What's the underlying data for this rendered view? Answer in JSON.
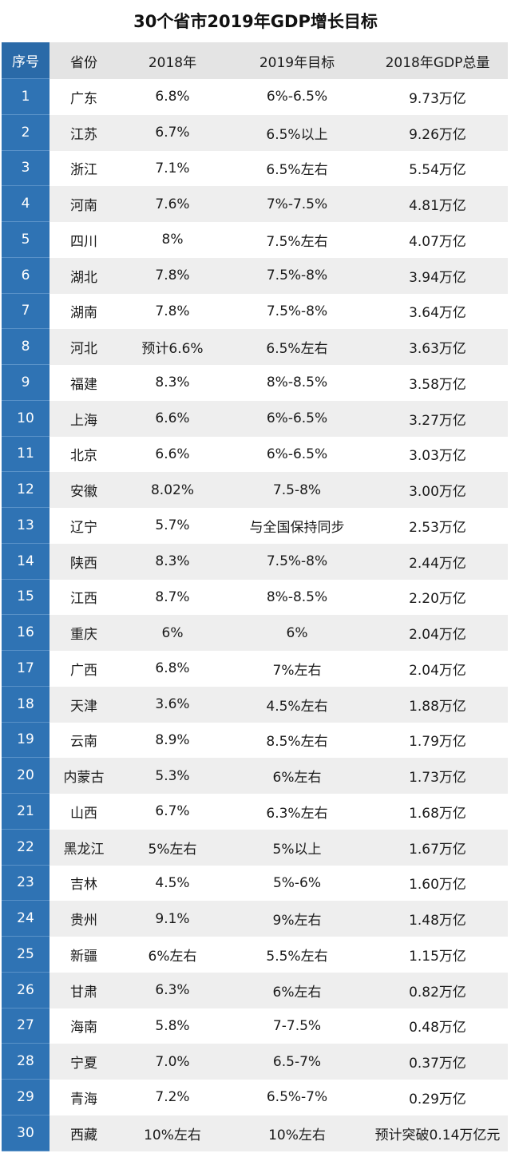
{
  "title": "30个省市2019年GDP增长目标",
  "columns": [
    "序号",
    "省份",
    "2018年",
    "2019年目标",
    "2018年GDP总量"
  ],
  "rows": [
    {
      "idx": "1",
      "province": "广东",
      "growth_2018": "6.8%",
      "target_2019": "6%-6.5%",
      "gdp_2018": "9.73万亿"
    },
    {
      "idx": "2",
      "province": "江苏",
      "growth_2018": "6.7%",
      "target_2019": "6.5%以上",
      "gdp_2018": "9.26万亿"
    },
    {
      "idx": "3",
      "province": "浙江",
      "growth_2018": "7.1%",
      "target_2019": "6.5%左右",
      "gdp_2018": "5.54万亿"
    },
    {
      "idx": "4",
      "province": "河南",
      "growth_2018": "7.6%",
      "target_2019": "7%-7.5%",
      "gdp_2018": "4.81万亿"
    },
    {
      "idx": "5",
      "province": "四川",
      "growth_2018": "8%",
      "target_2019": "7.5%左右",
      "gdp_2018": "4.07万亿"
    },
    {
      "idx": "6",
      "province": "湖北",
      "growth_2018": "7.8%",
      "target_2019": "7.5%-8%",
      "gdp_2018": "3.94万亿"
    },
    {
      "idx": "7",
      "province": "湖南",
      "growth_2018": "7.8%",
      "target_2019": "7.5%-8%",
      "gdp_2018": "3.64万亿"
    },
    {
      "idx": "8",
      "province": "河北",
      "growth_2018": "预计6.6%",
      "target_2019": "6.5%左右",
      "gdp_2018": "3.63万亿"
    },
    {
      "idx": "9",
      "province": "福建",
      "growth_2018": "8.3%",
      "target_2019": "8%-8.5%",
      "gdp_2018": "3.58万亿"
    },
    {
      "idx": "10",
      "province": "上海",
      "growth_2018": "6.6%",
      "target_2019": "6%-6.5%",
      "gdp_2018": "3.27万亿"
    },
    {
      "idx": "11",
      "province": "北京",
      "growth_2018": "6.6%",
      "target_2019": "6%-6.5%",
      "gdp_2018": "3.03万亿"
    },
    {
      "idx": "12",
      "province": "安徽",
      "growth_2018": "8.02%",
      "target_2019": "7.5-8%",
      "gdp_2018": "3.00万亿"
    },
    {
      "idx": "13",
      "province": "辽宁",
      "growth_2018": "5.7%",
      "target_2019": "与全国保持同步",
      "gdp_2018": "2.53万亿"
    },
    {
      "idx": "14",
      "province": "陕西",
      "growth_2018": "8.3%",
      "target_2019": "7.5%-8%",
      "gdp_2018": "2.44万亿"
    },
    {
      "idx": "15",
      "province": "江西",
      "growth_2018": "8.7%",
      "target_2019": "8%-8.5%",
      "gdp_2018": "2.20万亿"
    },
    {
      "idx": "16",
      "province": "重庆",
      "growth_2018": "6%",
      "target_2019": "6%",
      "gdp_2018": "2.04万亿"
    },
    {
      "idx": "17",
      "province": "广西",
      "growth_2018": "6.8%",
      "target_2019": "7%左右",
      "gdp_2018": "2.04万亿"
    },
    {
      "idx": "18",
      "province": "天津",
      "growth_2018": "3.6%",
      "target_2019": "4.5%左右",
      "gdp_2018": "1.88万亿"
    },
    {
      "idx": "19",
      "province": "云南",
      "growth_2018": "8.9%",
      "target_2019": "8.5%左右",
      "gdp_2018": "1.79万亿"
    },
    {
      "idx": "20",
      "province": "内蒙古",
      "growth_2018": "5.3%",
      "target_2019": "6%左右",
      "gdp_2018": "1.73万亿"
    },
    {
      "idx": "21",
      "province": "山西",
      "growth_2018": "6.7%",
      "target_2019": "6.3%左右",
      "gdp_2018": "1.68万亿"
    },
    {
      "idx": "22",
      "province": "黑龙江",
      "growth_2018": "5%左右",
      "target_2019": "5%以上",
      "gdp_2018": "1.67万亿"
    },
    {
      "idx": "23",
      "province": "吉林",
      "growth_2018": "4.5%",
      "target_2019": "5%-6%",
      "gdp_2018": "1.60万亿"
    },
    {
      "idx": "24",
      "province": "贵州",
      "growth_2018": "9.1%",
      "target_2019": "9%左右",
      "gdp_2018": "1.48万亿"
    },
    {
      "idx": "25",
      "province": "新疆",
      "growth_2018": "6%左右",
      "target_2019": "5.5%左右",
      "gdp_2018": "1.15万亿"
    },
    {
      "idx": "26",
      "province": "甘肃",
      "growth_2018": "6.3%",
      "target_2019": "6%左右",
      "gdp_2018": "0.82万亿"
    },
    {
      "idx": "27",
      "province": "海南",
      "growth_2018": "5.8%",
      "target_2019": "7-7.5%",
      "gdp_2018": "0.48万亿"
    },
    {
      "idx": "28",
      "province": "宁夏",
      "growth_2018": "7.0%",
      "target_2019": "6.5-7%",
      "gdp_2018": "0.37万亿"
    },
    {
      "idx": "29",
      "province": "青海",
      "growth_2018": "7.2%",
      "target_2019": "6.5%-7%",
      "gdp_2018": "0.29万亿"
    },
    {
      "idx": "30",
      "province": "西藏",
      "growth_2018": "10%左右",
      "target_2019": "10%左右",
      "gdp_2018": "预计突破0.14万亿元"
    }
  ],
  "colors": {
    "index_column": "#2f73b4",
    "alt_row": "#eeeeee",
    "header_row": "#e4e4e4"
  }
}
